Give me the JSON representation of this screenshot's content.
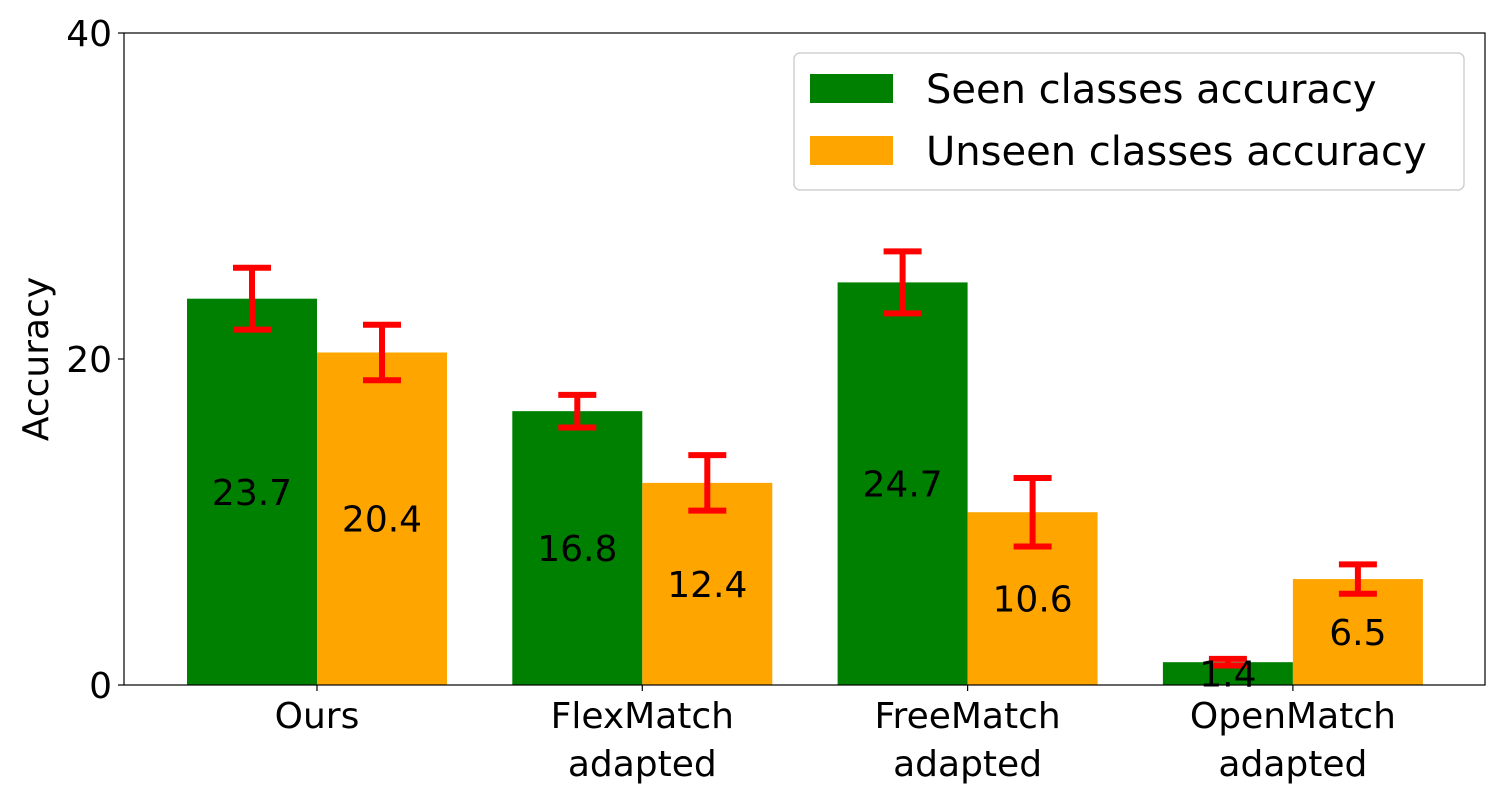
{
  "chart_data": {
    "type": "bar",
    "title": "",
    "xlabel": "",
    "ylabel": "Accuracy",
    "ylim": [
      0,
      40
    ],
    "yticks": [
      0,
      20,
      40
    ],
    "grid": false,
    "legend_position": "top-right",
    "categories": [
      [
        "Ours"
      ],
      [
        "FlexMatch",
        "adapted"
      ],
      [
        "FreeMatch",
        "adapted"
      ],
      [
        "OpenMatch",
        "adapted"
      ]
    ],
    "series": [
      {
        "name": "Seen classes accuracy",
        "color": "#008000",
        "values": [
          23.7,
          16.8,
          24.7,
          1.4
        ],
        "value_labels": [
          "23.7",
          "16.8",
          "24.7",
          "1.4"
        ],
        "error": [
          1.9,
          1.0,
          1.9,
          0.2
        ]
      },
      {
        "name": "Unseen classes accuracy",
        "color": "#FFA500",
        "values": [
          20.4,
          12.4,
          10.6,
          6.5
        ],
        "value_labels": [
          "20.4",
          "12.4",
          "10.6",
          "6.5"
        ],
        "error": [
          1.7,
          1.7,
          2.1,
          0.9
        ]
      }
    ],
    "error_bar_color": "#FF0000"
  }
}
